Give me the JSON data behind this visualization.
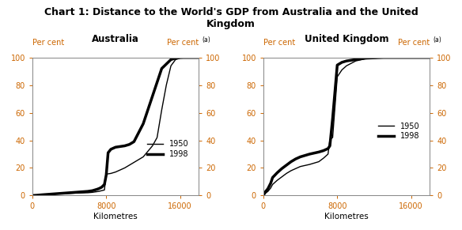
{
  "title": "Chart 1: Distance to the World's GDP from Australia and the United\nKingdom",
  "title_fontsize": 9,
  "subtitle_aus": "Australia",
  "subtitle_uk": "United Kingdom",
  "superscript": "(a)",
  "xlabel": "Kilometres",
  "per_cent_label": "Per cent",
  "ylim": [
    0,
    100
  ],
  "xlim": [
    0,
    18000
  ],
  "xticks": [
    0,
    8000,
    16000
  ],
  "yticks": [
    0,
    20,
    40,
    60,
    80,
    100
  ],
  "legend_1950": "1950",
  "legend_1998": "1998",
  "line_color_thin": "#000000",
  "line_color_thick": "#000000",
  "lw_thin": 1.0,
  "lw_thick": 2.5,
  "aus_1950_x": [
    0,
    500,
    1000,
    2000,
    3000,
    4000,
    5000,
    6000,
    6500,
    7000,
    7200,
    7500,
    7800,
    8000,
    8500,
    9000,
    10000,
    11000,
    12000,
    13000,
    13500,
    14000,
    14500,
    15000,
    15500,
    16000,
    17000,
    18000
  ],
  "aus_1950_y": [
    0,
    0.2,
    0.5,
    1.0,
    1.2,
    1.5,
    1.8,
    2.0,
    2.3,
    2.8,
    3.0,
    3.5,
    4.0,
    15.5,
    16.0,
    17.0,
    20.0,
    24.0,
    28.0,
    36.0,
    42.0,
    62.0,
    80.0,
    94.0,
    98.5,
    99.5,
    100.0,
    100.0
  ],
  "aus_1998_x": [
    0,
    500,
    1000,
    2000,
    3000,
    4000,
    5000,
    6000,
    6500,
    7000,
    7200,
    7500,
    7800,
    8000,
    8200,
    8500,
    9000,
    9500,
    10000,
    10500,
    11000,
    12000,
    13000,
    14000,
    15000,
    15500,
    16000,
    17000,
    18000
  ],
  "aus_1998_y": [
    0,
    0.2,
    0.5,
    1.0,
    1.5,
    2.0,
    2.5,
    3.0,
    3.5,
    4.5,
    5.0,
    6.0,
    8.0,
    15.0,
    31.0,
    33.5,
    35.0,
    35.5,
    36.0,
    37.0,
    39.0,
    52.0,
    72.0,
    92.0,
    98.5,
    99.5,
    100.0,
    100.0,
    100.0
  ],
  "uk_1950_x": [
    0,
    200,
    500,
    800,
    1000,
    1500,
    2000,
    2500,
    3000,
    3500,
    4000,
    5000,
    6000,
    6500,
    7000,
    7200,
    7500,
    8000,
    8500,
    9000,
    10000,
    11000,
    13000,
    16000,
    18000
  ],
  "uk_1950_y": [
    0,
    1.5,
    3.0,
    5.5,
    8.0,
    11.0,
    13.5,
    16.0,
    18.0,
    19.5,
    21.0,
    22.5,
    24.5,
    27.0,
    30.0,
    40.5,
    42.0,
    86.0,
    91.0,
    94.0,
    97.5,
    99.0,
    100.0,
    100.0,
    100.0
  ],
  "uk_1998_x": [
    0,
    200,
    500,
    800,
    1000,
    1500,
    2000,
    2500,
    3000,
    3500,
    4000,
    5000,
    6000,
    6500,
    7000,
    7200,
    7500,
    8000,
    8500,
    9000,
    10000,
    11000,
    13000,
    16000,
    18000
  ],
  "uk_1998_y": [
    0,
    2.5,
    5.0,
    9.0,
    13.0,
    16.5,
    19.5,
    22.0,
    24.5,
    26.5,
    28.0,
    30.0,
    31.5,
    32.5,
    34.0,
    36.0,
    56.0,
    94.5,
    96.5,
    97.5,
    98.5,
    99.5,
    100.0,
    100.0,
    100.0
  ],
  "axis_label_color": "#cc6600",
  "tick_label_color": "#cc6600",
  "background_color": "#ffffff",
  "spine_color": "#888888"
}
